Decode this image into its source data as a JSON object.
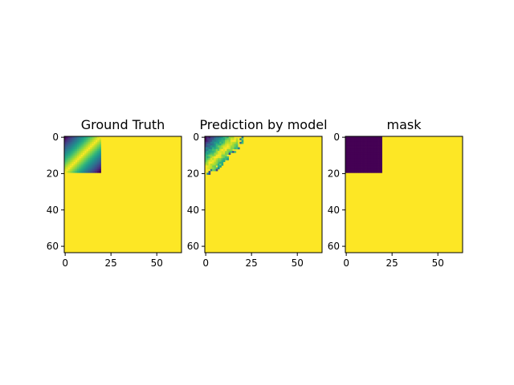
{
  "colors": {
    "background": "#ffffff",
    "axis": "#000000",
    "viridis": [
      "#440154",
      "#482878",
      "#3e4989",
      "#31688e",
      "#26828e",
      "#1f9e89",
      "#35b779",
      "#6ece58",
      "#b5de2b",
      "#fde725"
    ]
  },
  "chart_data": [
    {
      "type": "heatmap",
      "title": "Ground Truth",
      "colormap": "viridis",
      "shape": [
        64,
        64
      ],
      "xlim": [
        0,
        63
      ],
      "ylim": [
        63,
        0
      ],
      "x_ticks": [
        0,
        25,
        50
      ],
      "y_ticks": [
        0,
        20,
        40,
        60
      ],
      "fill_value": 1.0,
      "region": {
        "rows": [
          0,
          19
        ],
        "cols": [
          0,
          19
        ]
      },
      "region_pattern": "diagonal bands: value low near top-left and bottom-right corners, high along anti-diagonal",
      "region_value_fn": "1 - |r + c - 19| / 19"
    },
    {
      "type": "heatmap",
      "title": "Prediction by model",
      "colormap": "viridis",
      "shape": [
        64,
        64
      ],
      "xlim": [
        0,
        63
      ],
      "ylim": [
        63,
        0
      ],
      "x_ticks": [
        0,
        25,
        50
      ],
      "y_ticks": [
        0,
        20,
        40,
        60
      ],
      "fill_value": 1.0,
      "region": {
        "rows": [
          0,
          16
        ],
        "cols": [
          0,
          16
        ]
      },
      "region_pattern": "noisy diagonal bands, triangular top-left patch with jagged edge",
      "region_value_fn": "1 - |r + c - 17| / 17"
    },
    {
      "type": "heatmap",
      "title": "mask",
      "colormap": "viridis",
      "shape": [
        64,
        64
      ],
      "xlim": [
        0,
        63
      ],
      "ylim": [
        63,
        0
      ],
      "x_ticks": [
        0,
        25,
        50
      ],
      "y_ticks": [
        0,
        20,
        40,
        60
      ],
      "fill_value": 1.0,
      "region": {
        "rows": [
          0,
          19
        ],
        "cols": [
          0,
          19
        ]
      },
      "region_value": 0.0
    }
  ]
}
